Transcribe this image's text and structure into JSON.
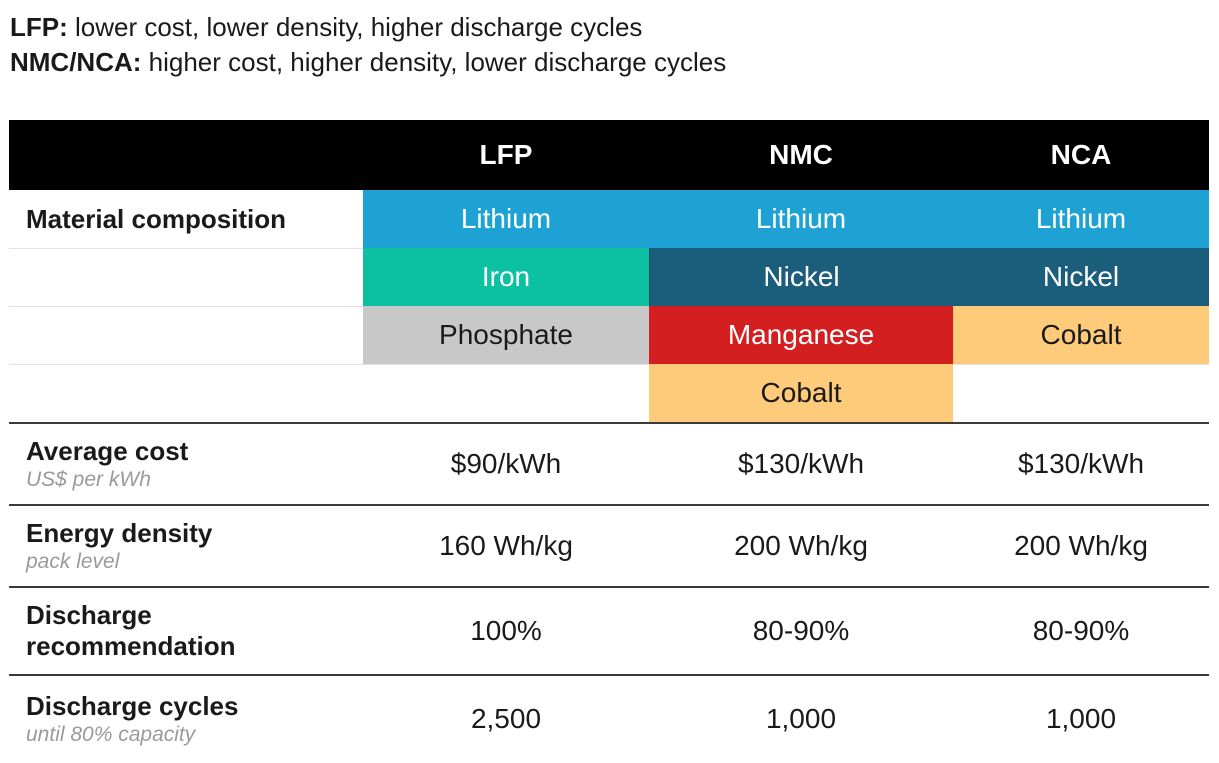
{
  "intro": [
    {
      "key": "LFP:",
      "text": " lower cost, lower density, higher discharge cycles"
    },
    {
      "key": "NMC/NCA:",
      "text": " higher cost, higher density, lower discharge cycles"
    }
  ],
  "columns": [
    "LFP",
    "NMC",
    "NCA"
  ],
  "material": {
    "label": "Material composition",
    "LFP": [
      "Lithium",
      "Iron",
      "Phosphate"
    ],
    "NMC": [
      "Lithium",
      "Nickel",
      "Manganese",
      "Cobalt"
    ],
    "NCA": [
      "Lithium",
      "Nickel",
      "Cobalt"
    ]
  },
  "rows": [
    {
      "label": "Average cost",
      "sub": "US$ per kWh",
      "values": [
        "$90/kWh",
        "$130/kWh",
        "$130/kWh"
      ]
    },
    {
      "label": "Energy density",
      "sub": "pack level",
      "values": [
        "160 Wh/kg",
        "200 Wh/kg",
        "200 Wh/kg"
      ]
    },
    {
      "label": "Discharge\nrecommendation",
      "sub": "",
      "values": [
        "100%",
        "80-90%",
        "80-90%"
      ]
    },
    {
      "label": "Discharge cycles",
      "sub": "until 80% capacity",
      "values": [
        "2,500",
        "1,000",
        "1,000"
      ]
    }
  ],
  "colors": {
    "lithium": "#1ea2d3",
    "iron": "#0cc1a1",
    "nickel": "#1a5e7c",
    "phosphate": "#c8c8c8",
    "manganese": "#d31f1f",
    "cobalt": "#fdcb7a",
    "header": "#000000"
  }
}
